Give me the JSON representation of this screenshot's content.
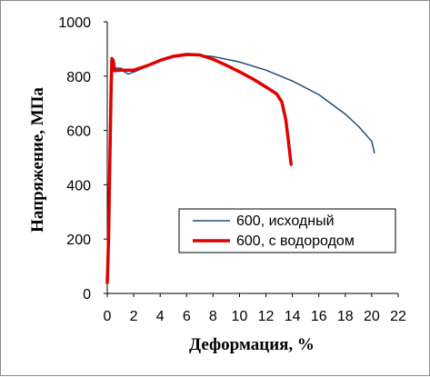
{
  "chart_data": {
    "type": "line",
    "title": "",
    "xlabel": "Деформация, %",
    "ylabel": "Напряжение, МПа",
    "xlim": [
      0,
      22
    ],
    "ylim": [
      0,
      1000
    ],
    "x_ticks": [
      0,
      2,
      4,
      6,
      8,
      10,
      12,
      14,
      16,
      18,
      20,
      22
    ],
    "y_ticks": [
      0,
      200,
      400,
      600,
      800,
      1000
    ],
    "grid": false,
    "legend_position": "lower-right",
    "series": [
      {
        "name": "600, исходный",
        "color": "#1f4e79",
        "points": [
          [
            0.0,
            40
          ],
          [
            0.1,
            200
          ],
          [
            0.2,
            450
          ],
          [
            0.3,
            700
          ],
          [
            0.4,
            815
          ],
          [
            0.5,
            830
          ],
          [
            0.8,
            830
          ],
          [
            1.1,
            828
          ],
          [
            1.3,
            815
          ],
          [
            1.6,
            808
          ],
          [
            2.0,
            815
          ],
          [
            2.5,
            825
          ],
          [
            3.0,
            838
          ],
          [
            4.0,
            858
          ],
          [
            5.0,
            870
          ],
          [
            6.0,
            876
          ],
          [
            7.0,
            877
          ],
          [
            8.0,
            872
          ],
          [
            10.0,
            852
          ],
          [
            12.0,
            822
          ],
          [
            14.0,
            782
          ],
          [
            16.0,
            732
          ],
          [
            18.0,
            660
          ],
          [
            19.0,
            615
          ],
          [
            20.0,
            560
          ],
          [
            20.2,
            518
          ]
        ]
      },
      {
        "name": "600, с водородом",
        "color": "#e00000",
        "points": [
          [
            0.0,
            40
          ],
          [
            0.1,
            200
          ],
          [
            0.2,
            500
          ],
          [
            0.3,
            780
          ],
          [
            0.35,
            865
          ],
          [
            0.45,
            858
          ],
          [
            0.55,
            820
          ],
          [
            1.0,
            822
          ],
          [
            2.0,
            822
          ],
          [
            3.0,
            838
          ],
          [
            4.0,
            858
          ],
          [
            5.0,
            873
          ],
          [
            6.0,
            880
          ],
          [
            7.0,
            878
          ],
          [
            8.0,
            862
          ],
          [
            9.0,
            840
          ],
          [
            10.0,
            816
          ],
          [
            11.0,
            790
          ],
          [
            12.0,
            760
          ],
          [
            12.8,
            735
          ],
          [
            13.2,
            705
          ],
          [
            13.5,
            640
          ],
          [
            13.7,
            560
          ],
          [
            13.9,
            475
          ]
        ]
      }
    ]
  }
}
